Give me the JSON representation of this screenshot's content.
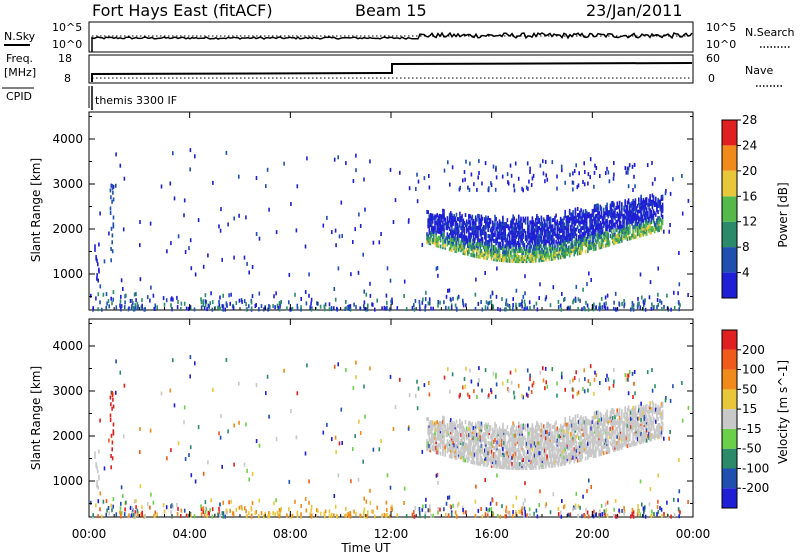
{
  "header": {
    "title": "Fort Hays East (fitACF)",
    "beam": "Beam 15",
    "date": "23/Jan/2011"
  },
  "top_panels": {
    "nsky_label": "N.Sky",
    "nsky_ticks": [
      "10^5",
      "10^0"
    ],
    "nsearch_label": "N.Search",
    "nsearch_ticks": [
      "10^5",
      "10^0"
    ],
    "freq_label": "Freq.",
    "freq_unit": "[MHz]",
    "freq_ticks": [
      "18",
      "8"
    ],
    "nave_label": "Nave",
    "nave_ticks": [
      "60",
      "0"
    ],
    "cpid_label": "CPID",
    "cpid_text": "themis 3300 IF"
  },
  "chart_data": [
    {
      "type": "heatmap",
      "name": "power",
      "ylabel": "Slant Range [km]",
      "yticks": [
        1000,
        2000,
        3000,
        4000
      ],
      "ylim": [
        200,
        4600
      ],
      "xlim_hours": [
        0,
        24
      ],
      "colorbar": {
        "label": "Power [dB]",
        "ticks": [
          "4",
          "8",
          "12",
          "16",
          "20",
          "24",
          "28"
        ],
        "colors": [
          "#1f1fd6",
          "#1f4fb0",
          "#2a8a6a",
          "#55b84a",
          "#e8c83a",
          "#f08a1a",
          "#e02020"
        ]
      },
      "features": [
        {
          "start_hr": 13.4,
          "end_hr": 22.8,
          "range_top_km": [
            2500,
            2100,
            2200,
            2600
          ],
          "range_bottom_km": [
            1800,
            1400,
            1300,
            1900
          ]
        }
      ]
    },
    {
      "type": "heatmap",
      "name": "velocity",
      "ylabel": "Slant Range [km]",
      "yticks": [
        1000,
        2000,
        3000,
        4000
      ],
      "ylim": [
        200,
        4600
      ],
      "xlim_hours": [
        0,
        24
      ],
      "xticks": [
        "00:00",
        "04:00",
        "08:00",
        "12:00",
        "16:00",
        "20:00",
        "00:00"
      ],
      "xlabel": "Time UT",
      "colorbar": {
        "label": "Velocity [m s^-1]",
        "ticks": [
          "200",
          "100",
          "50",
          "15",
          "-15",
          "-50",
          "-100",
          "-200"
        ],
        "colors": [
          "#1f1fd6",
          "#1f4fb0",
          "#2a8a6a",
          "#6ccf4a",
          "#c8c8c8",
          "#e8c83a",
          "#f08a1a",
          "#f05a1a",
          "#e02020"
        ]
      }
    }
  ],
  "colors": {
    "axis": "#000000",
    "ground_scatter": "#c8c8c8"
  }
}
